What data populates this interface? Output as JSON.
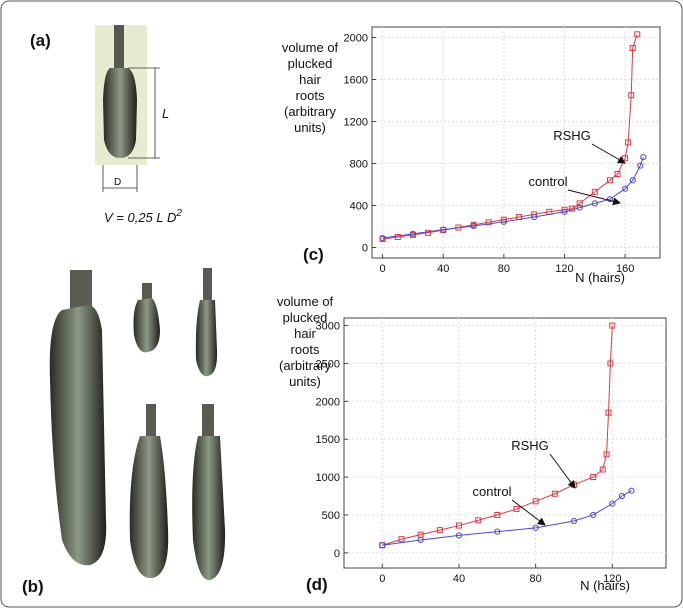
{
  "figure": {
    "panel_a": "(a)",
    "panel_b": "(b)",
    "length_label": "L",
    "diameter_label": "D",
    "formula": {
      "text": "V = 0,25 L D",
      "superscript": "2"
    }
  },
  "chart_data": [
    {
      "type": "line",
      "panel_label": "(c)",
      "ylabel_lines": [
        "volume of",
        "plucked",
        "hair",
        "roots",
        "(arbitrary",
        "units)"
      ],
      "xlabel": "N (hairs)",
      "xlim": [
        -7,
        183
      ],
      "xticks": [
        0,
        40,
        80,
        120,
        160
      ],
      "ylim": [
        -100,
        2100
      ],
      "yticks": [
        0,
        400,
        800,
        1200,
        1600,
        2000
      ],
      "grid": true,
      "series": [
        {
          "name": "RSHG",
          "color": "#e0393b",
          "marker": "square",
          "x": [
            0,
            10,
            20,
            30,
            40,
            50,
            60,
            70,
            80,
            90,
            100,
            110,
            120,
            125,
            130,
            140,
            150,
            155,
            160,
            162,
            164,
            165,
            168
          ],
          "values": [
            80,
            100,
            120,
            140,
            165,
            190,
            215,
            240,
            265,
            290,
            315,
            340,
            360,
            370,
            420,
            530,
            640,
            700,
            850,
            1000,
            1450,
            1900,
            2030
          ]
        },
        {
          "name": "control",
          "color": "#4a4ad6",
          "marker": "circle",
          "x": [
            0,
            20,
            40,
            60,
            80,
            100,
            120,
            130,
            140,
            150,
            160,
            165,
            170,
            172
          ],
          "values": [
            90,
            130,
            170,
            205,
            245,
            290,
            340,
            380,
            420,
            460,
            560,
            640,
            780,
            860
          ]
        }
      ]
    },
    {
      "type": "line",
      "panel_label": "(d)",
      "ylabel_lines": [
        "volume of",
        "plucked",
        "hair",
        "roots",
        "(arbitrary",
        "units)"
      ],
      "xlabel": "N (hairs)",
      "xlim": [
        -20,
        148
      ],
      "xticks": [
        0,
        40,
        80,
        120
      ],
      "ylim": [
        -200,
        3100
      ],
      "yticks": [
        0,
        500,
        1000,
        1500,
        2000,
        2500,
        3000
      ],
      "grid": true,
      "series": [
        {
          "name": "RSHG",
          "color": "#e0393b",
          "marker": "square",
          "x": [
            0,
            10,
            20,
            30,
            40,
            50,
            60,
            70,
            80,
            90,
            100,
            110,
            115,
            117,
            118,
            119,
            120
          ],
          "values": [
            100,
            180,
            240,
            300,
            360,
            430,
            500,
            580,
            680,
            780,
            900,
            1000,
            1100,
            1300,
            1850,
            2500,
            3000
          ]
        },
        {
          "name": "control",
          "color": "#4a4ad6",
          "marker": "circle",
          "x": [
            0,
            20,
            40,
            60,
            80,
            100,
            110,
            120,
            125,
            130
          ],
          "values": [
            100,
            170,
            230,
            280,
            330,
            420,
            500,
            650,
            750,
            820
          ]
        }
      ]
    }
  ]
}
